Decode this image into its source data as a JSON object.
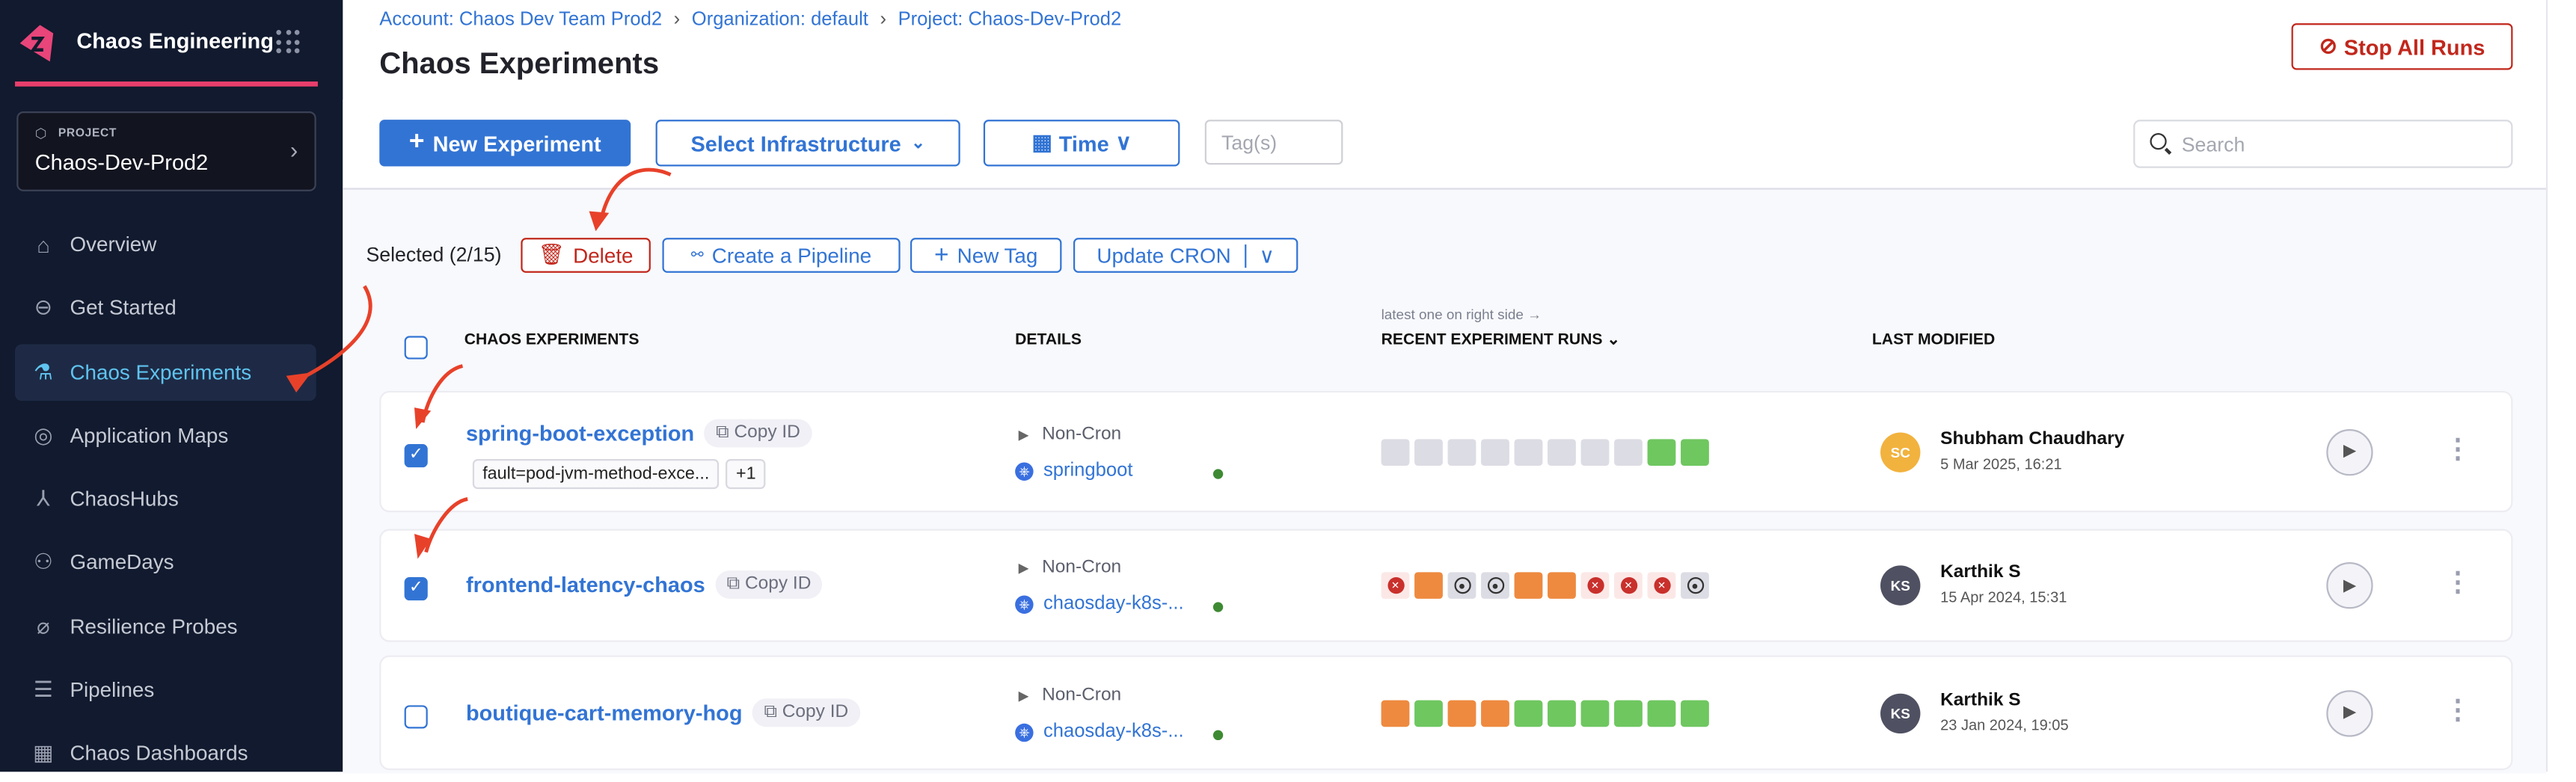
{
  "sidebar": {
    "module_title": "Chaos Engineering",
    "project": {
      "label": "PROJECT",
      "value": "Chaos-Dev-Prod2"
    },
    "items": [
      {
        "label": "Overview",
        "icon": "home-icon"
      },
      {
        "label": "Get Started",
        "icon": "get-started-icon"
      },
      {
        "label": "Chaos Experiments",
        "icon": "flask-icon",
        "active": true
      },
      {
        "label": "Application Maps",
        "icon": "map-icon"
      },
      {
        "label": "ChaosHubs",
        "icon": "hub-icon"
      },
      {
        "label": "GameDays",
        "icon": "users-icon"
      },
      {
        "label": "Resilience Probes",
        "icon": "probe-icon"
      },
      {
        "label": "Pipelines",
        "icon": "pipeline-icon"
      },
      {
        "label": "Chaos Dashboards",
        "icon": "dashboard-icon"
      }
    ]
  },
  "header": {
    "breadcrumbs": [
      "Account: Chaos Dev Team Prod2",
      "Organization: default",
      "Project: Chaos-Dev-Prod2"
    ],
    "title": "Chaos Experiments",
    "stop_all_runs": "Stop All Runs"
  },
  "toolbar": {
    "new_experiment": "New Experiment",
    "select_infrastructure": "Select Infrastructure",
    "time": "Time",
    "tags_placeholder": "Tag(s)",
    "search_placeholder": "Search"
  },
  "bulk": {
    "selected": "Selected (2/15)",
    "delete": "Delete",
    "create_pipeline": "Create a Pipeline",
    "new_tag": "New Tag",
    "update_cron": "Update CRON"
  },
  "table": {
    "columns": {
      "experiments": "CHAOS EXPERIMENTS",
      "details": "DETAILS",
      "runs": "RECENT EXPERIMENT RUNS",
      "runs_hint": "latest one on right side →",
      "modified": "LAST MODIFIED"
    },
    "copy_id": "Copy ID",
    "rows": [
      {
        "name": "spring-boot-exception",
        "checked": true,
        "tags": [
          "fault=pod-jvm-method-exce...",
          "+1"
        ],
        "schedule": "Non-Cron",
        "infra": "springboot",
        "runs": [
          "none",
          "none",
          "none",
          "none",
          "none",
          "none",
          "none",
          "none",
          "success",
          "success"
        ],
        "user": "Shubham Chaudhary",
        "initials": "SC",
        "avatar_color": "#f2b23e",
        "date": "5 Mar 2025, 16:21"
      },
      {
        "name": "frontend-latency-chaos",
        "checked": true,
        "tags": [],
        "schedule": "Non-Cron",
        "infra": "chaosday-k8s-...",
        "runs": [
          "failed",
          "partial",
          "stopped",
          "stopped",
          "partial",
          "partial",
          "failed",
          "failed",
          "failed",
          "stopped"
        ],
        "user": "Karthik S",
        "initials": "KS",
        "avatar_color": "#4f5162",
        "date": "15 Apr 2024, 15:31"
      },
      {
        "name": "boutique-cart-memory-hog",
        "checked": false,
        "tags": [],
        "schedule": "Non-Cron",
        "infra": "chaosday-k8s-...",
        "runs": [
          "partial",
          "success",
          "partial",
          "partial",
          "success",
          "success",
          "success",
          "success",
          "success",
          "success"
        ],
        "user": "Karthik S",
        "initials": "KS",
        "avatar_color": "#4f5162",
        "date": "23 Jan 2024, 19:05"
      }
    ]
  },
  "colors": {
    "accent": "#3274d4",
    "danger": "#c1271c",
    "sidebar_bg": "#111a2e",
    "brand_pink": "#e83e6c",
    "success": "#6fc760",
    "partial": "#ee8a3f",
    "none": "#dcdce4",
    "annotation": "#e8412a"
  }
}
